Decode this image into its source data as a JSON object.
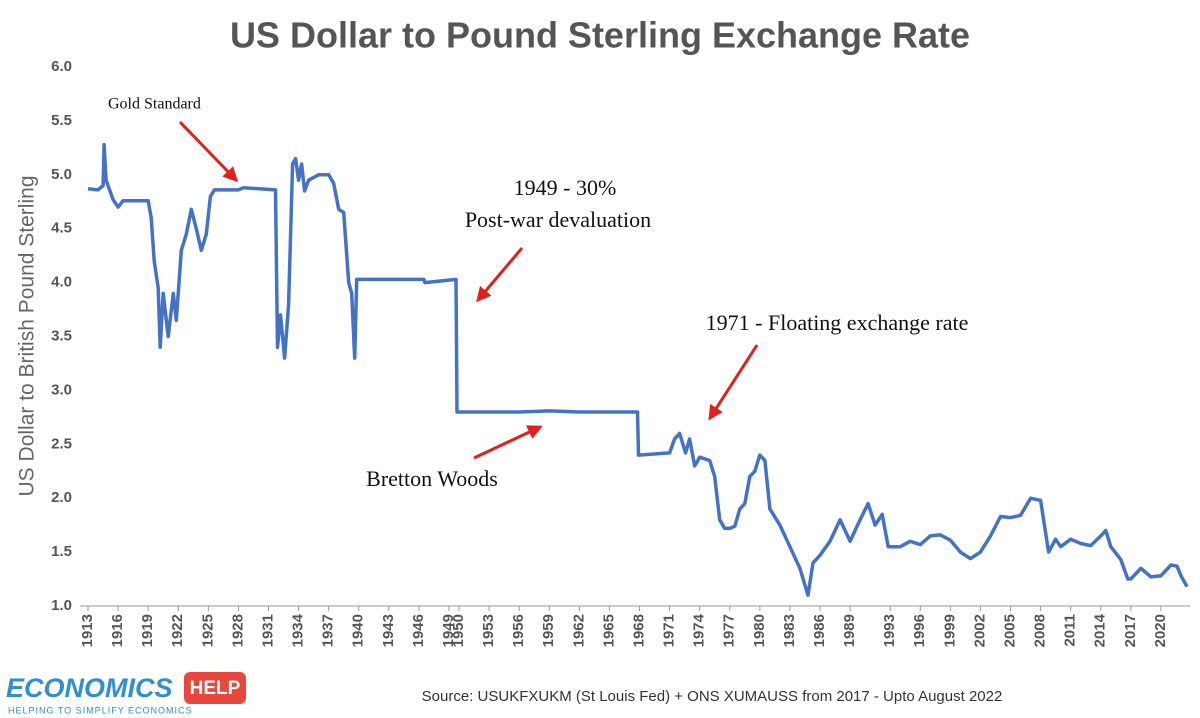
{
  "chart_data": {
    "type": "line",
    "title": "US Dollar to Pound Sterling Exchange Rate",
    "ylabel": "US Dollar to British Pound Sterling",
    "source": "Source: USUKFXUKM (St Louis Fed) + ONS XUMAUSS from 2017 - Upto August 2022",
    "logo": {
      "name": "ECONOMICS",
      "badge": "HELP",
      "tagline": "HELPING TO SIMPLIFY ECONOMICS"
    },
    "annotations": [
      "Gold Standard",
      "1949 - 30%",
      "Post-war devaluation",
      "1971 - Floating exchange rate",
      "Bretton Woods"
    ],
    "color": "#4472c4",
    "grid": false,
    "xlim": [
      1912.2,
      2022.9
    ],
    "xticks": [
      1913,
      1916,
      1919,
      1922,
      1925,
      1928,
      1931,
      1934,
      1937,
      1940,
      1943,
      1946,
      1949,
      1950,
      1953,
      1956,
      1959,
      1962,
      1965,
      1968,
      1971,
      1974,
      1977,
      1980,
      1983,
      1986,
      1989,
      1993,
      1996,
      1999,
      2002,
      2005,
      2008,
      2011,
      2014,
      2017,
      2020
    ],
    "ylim": [
      1.0,
      6.0
    ],
    "yticks": [
      {
        "value": 1,
        "label": "1.0"
      },
      1.5,
      {
        "value": 2,
        "label": "2.0"
      },
      2.5,
      {
        "value": 3,
        "label": "3.0"
      },
      3.5,
      {
        "value": 4,
        "label": "4.0"
      },
      4.5,
      {
        "value": 5,
        "label": "5.0"
      },
      5.5,
      {
        "value": 6,
        "label": "6.0"
      }
    ],
    "x": [
      1913,
      1914,
      1914.5,
      1914.6,
      1914.8,
      1915.5,
      1916,
      1916.5,
      1919,
      1919.3,
      1919.6,
      1920,
      1920.2,
      1920.5,
      1921,
      1921.5,
      1921.8,
      1922.3,
      1922.8,
      1923.3,
      1923.8,
      1924.3,
      1924.8,
      1925.2,
      1925.6,
      1928,
      1928.5,
      1931.7,
      1931.9,
      1932.2,
      1932.6,
      1933,
      1933.4,
      1933.7,
      1934,
      1934.3,
      1934.6,
      1935,
      1936,
      1937,
      1937.5,
      1938,
      1938.5,
      1939,
      1939.3,
      1939.6,
      1939.8,
      1946.5,
      1946.6,
      1949.7,
      1949.8,
      1953,
      1956,
      1959,
      1962,
      1967.8,
      1967.9,
      1971,
      1971.5,
      1972,
      1972.6,
      1973,
      1973.5,
      1974,
      1975,
      1975.5,
      1976,
      1976.5,
      1977,
      1977.5,
      1978,
      1978.5,
      1979,
      1979.5,
      1980,
      1980.5,
      1981,
      1982,
      1983,
      1984,
      1984.8,
      1985.3,
      1986,
      1987,
      1988,
      1989,
      1990,
      1990.8,
      1991.5,
      1992.2,
      1992.8,
      1994,
      1995,
      1996,
      1997,
      1998,
      1999,
      2000,
      2001,
      2002,
      2003,
      2004,
      2005,
      2006,
      2007,
      2008,
      2008.8,
      2009.5,
      2010,
      2011,
      2012,
      2013,
      2014,
      2014.5,
      2015,
      2016,
      2016.7,
      2017,
      2018,
      2019,
      2020,
      2021,
      2021.6,
      2022,
      2022.6
    ],
    "values": [
      4.87,
      4.86,
      4.9,
      5.28,
      4.95,
      4.77,
      4.7,
      4.76,
      4.76,
      4.6,
      4.2,
      3.95,
      3.4,
      3.9,
      3.5,
      3.9,
      3.65,
      4.3,
      4.45,
      4.68,
      4.5,
      4.3,
      4.45,
      4.8,
      4.86,
      4.86,
      4.88,
      4.86,
      3.4,
      3.7,
      3.3,
      3.8,
      5.1,
      5.15,
      4.95,
      5.1,
      4.85,
      4.95,
      5.0,
      5.0,
      4.92,
      4.68,
      4.65,
      4.0,
      3.9,
      3.3,
      4.03,
      4.03,
      4.0,
      4.03,
      2.8,
      2.8,
      2.8,
      2.81,
      2.8,
      2.8,
      2.4,
      2.42,
      2.55,
      2.6,
      2.42,
      2.55,
      2.3,
      2.38,
      2.35,
      2.2,
      1.8,
      1.72,
      1.72,
      1.74,
      1.9,
      1.95,
      2.2,
      2.25,
      2.4,
      2.35,
      1.9,
      1.75,
      1.55,
      1.35,
      1.1,
      1.4,
      1.47,
      1.6,
      1.8,
      1.6,
      1.8,
      1.95,
      1.75,
      1.85,
      1.55,
      1.55,
      1.6,
      1.57,
      1.65,
      1.66,
      1.61,
      1.5,
      1.44,
      1.5,
      1.65,
      1.83,
      1.82,
      1.84,
      2.0,
      1.98,
      1.5,
      1.62,
      1.55,
      1.62,
      1.58,
      1.56,
      1.65,
      1.7,
      1.55,
      1.43,
      1.25,
      1.25,
      1.35,
      1.27,
      1.28,
      1.38,
      1.37,
      1.28,
      1.18
    ]
  }
}
